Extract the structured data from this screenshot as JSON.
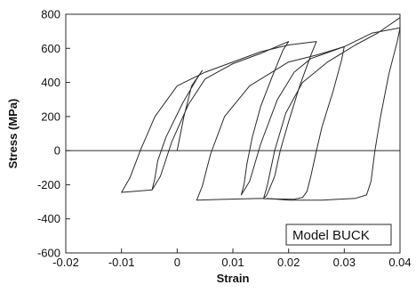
{
  "chart_data": {
    "type": "line",
    "title": "",
    "xlabel": "Strain",
    "ylabel": "Stress (MPa)",
    "xlim": [
      -0.02,
      0.04
    ],
    "ylim": [
      -600,
      800
    ],
    "xticks": [
      -0.02,
      -0.01,
      0,
      0.01,
      0.02,
      0.03,
      0.04
    ],
    "xtick_labels": [
      "-0.02",
      "-0.01",
      "0",
      "0.01",
      "0.02",
      "0.03",
      "0.04"
    ],
    "yticks": [
      -600,
      -400,
      -200,
      0,
      200,
      400,
      600,
      800
    ],
    "ytick_labels": [
      "-600",
      "-400",
      "-200",
      "0",
      "200",
      "400",
      "600",
      "800"
    ],
    "grid": false,
    "zero_line": true,
    "legend": {
      "text": "Model BUCK",
      "position": "bottom-right"
    },
    "line_color": "#2a2a2a",
    "series": [
      {
        "points": [
          [
            0,
            0
          ],
          [
            0.0012,
            200
          ],
          [
            0.0026,
            380
          ],
          [
            0.0045,
            470
          ],
          [
            0.0045,
            470
          ],
          [
            0.0035,
            420
          ],
          [
            0.001,
            280
          ],
          [
            -0.002,
            80
          ],
          [
            -0.0035,
            -60
          ],
          [
            -0.004,
            -160
          ],
          [
            -0.0045,
            -230
          ],
          [
            -0.0045,
            -230
          ],
          [
            -0.003,
            -150
          ],
          [
            -0.001,
            50
          ],
          [
            0.002,
            270
          ],
          [
            0.005,
            420
          ],
          [
            0.01,
            510
          ],
          [
            0.015,
            570
          ],
          [
            0.02,
            640
          ],
          [
            0.02,
            640
          ],
          [
            0.019,
            590
          ],
          [
            0.017,
            430
          ],
          [
            0.015,
            260
          ],
          [
            0.0135,
            80
          ],
          [
            0.0125,
            -80
          ],
          [
            0.012,
            -200
          ],
          [
            0.0115,
            -260
          ],
          [
            0.0115,
            -260
          ],
          [
            0.013,
            -180
          ],
          [
            0.015,
            40
          ],
          [
            0.018,
            300
          ],
          [
            0.021,
            460
          ],
          [
            0.024,
            540
          ],
          [
            0.03,
            610
          ],
          [
            0.035,
            690
          ],
          [
            0.04,
            720
          ],
          [
            0.04,
            720
          ],
          [
            0.0395,
            640
          ],
          [
            0.038,
            450
          ],
          [
            0.0365,
            200
          ],
          [
            0.0355,
            0
          ],
          [
            0.0348,
            -180
          ],
          [
            0.034,
            -260
          ],
          [
            0.032,
            -280
          ],
          [
            0.026,
            -290
          ],
          [
            0.02,
            -290
          ],
          [
            0.016,
            -280
          ]
        ]
      },
      {
        "points": [
          [
            -0.0045,
            -230
          ],
          [
            -0.007,
            -237
          ],
          [
            -0.0095,
            -243
          ],
          [
            -0.01,
            -245
          ],
          [
            -0.01,
            -245
          ],
          [
            -0.0085,
            -160
          ],
          [
            -0.0065,
            10
          ],
          [
            -0.004,
            200
          ],
          [
            0,
            380
          ],
          [
            0.005,
            460
          ],
          [
            0.01,
            520
          ],
          [
            0.015,
            580
          ],
          [
            0.02,
            620
          ],
          [
            0.025,
            640
          ],
          [
            0.025,
            640
          ],
          [
            0.024,
            560
          ],
          [
            0.022,
            380
          ],
          [
            0.02,
            170
          ],
          [
            0.0185,
            0
          ],
          [
            0.0175,
            -150
          ],
          [
            0.0165,
            -230
          ],
          [
            0.016,
            -265
          ],
          [
            0.0155,
            -280
          ],
          [
            0.012,
            -283
          ],
          [
            0.008,
            -286
          ],
          [
            0.0035,
            -290
          ],
          [
            0.0035,
            -290
          ],
          [
            0.0045,
            -210
          ],
          [
            0.006,
            -20
          ],
          [
            0.0085,
            200
          ],
          [
            0.013,
            380
          ],
          [
            0.02,
            520
          ],
          [
            0.025,
            560
          ],
          [
            0.03,
            610
          ],
          [
            0.03,
            610
          ],
          [
            0.0295,
            530
          ],
          [
            0.028,
            350
          ],
          [
            0.026,
            140
          ],
          [
            0.025,
            0
          ],
          [
            0.024,
            -150
          ],
          [
            0.0233,
            -240
          ],
          [
            0.0225,
            -275
          ],
          [
            0.021,
            -285
          ],
          [
            0.0155,
            -282
          ]
        ]
      },
      {
        "points": [
          [
            0.0155,
            -282
          ],
          [
            0.0162,
            -200
          ],
          [
            0.0175,
            0
          ],
          [
            0.0195,
            220
          ],
          [
            0.0225,
            400
          ],
          [
            0.027,
            520
          ],
          [
            0.032,
            620
          ],
          [
            0.036,
            690
          ],
          [
            0.04,
            780
          ]
        ]
      }
    ]
  }
}
